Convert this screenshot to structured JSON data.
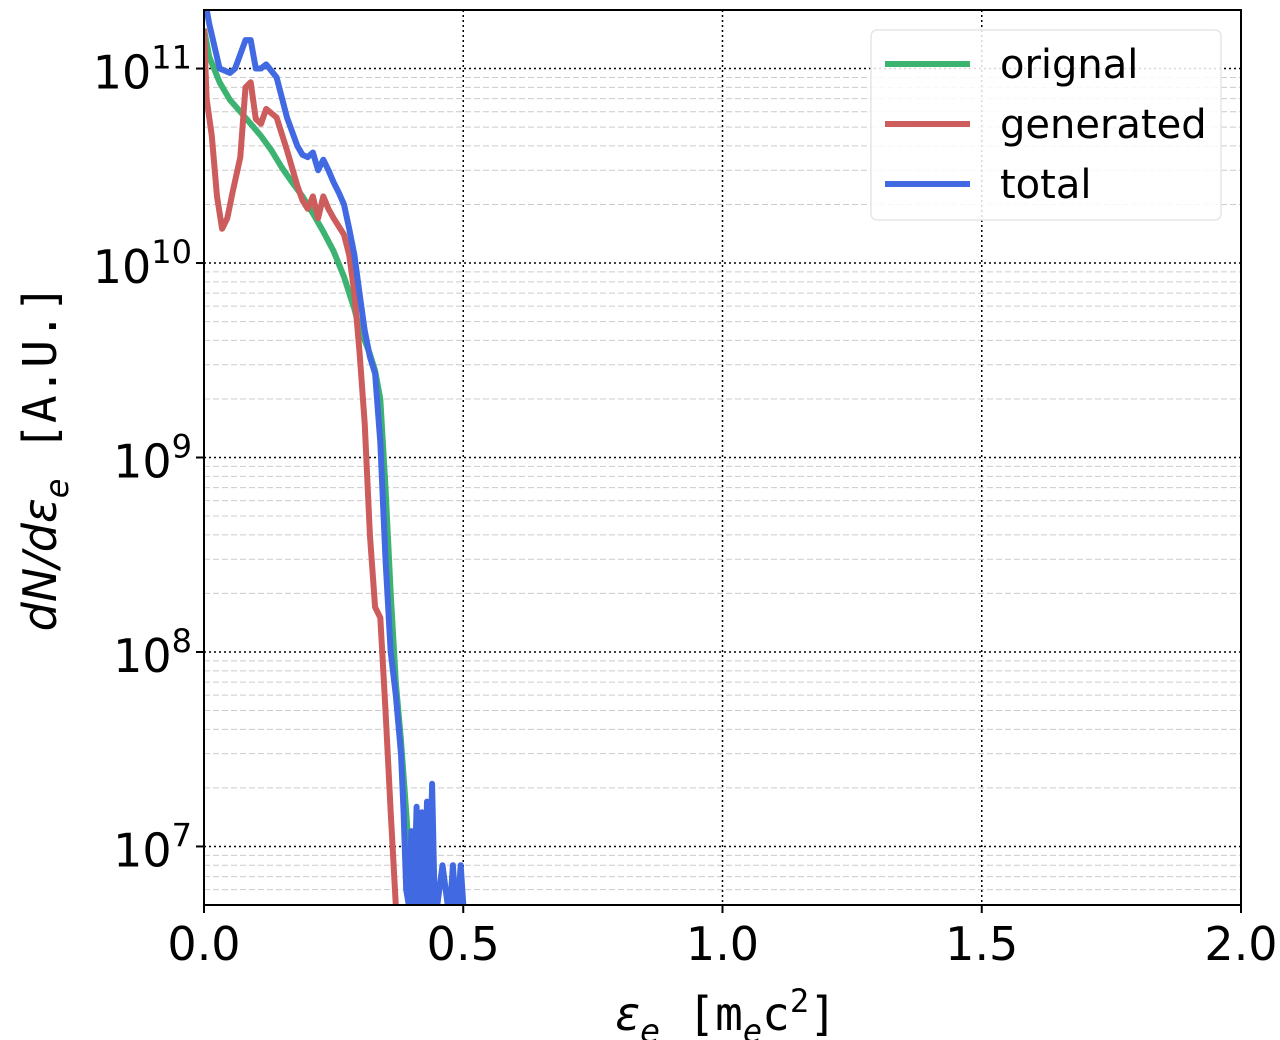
{
  "chart_data": {
    "type": "line",
    "xlabel": {
      "var": "ε",
      "sub": "e",
      "unit_open": " [m",
      "unit_sub": "e",
      "unit_mid": "c",
      "unit_sup": "2",
      "unit_close": "]"
    },
    "ylabel": {
      "pre": "dN/dε",
      "sub": "e",
      "unit": " [A.U.]"
    },
    "xlim": [
      0.0,
      2.0
    ],
    "ylim": [
      5000000,
      200000000000
    ],
    "yscale": "log",
    "grid": true,
    "legend_position": "top-right",
    "x_ticks": [
      "0.0",
      "0.5",
      "1.0",
      "1.5",
      "2.0"
    ],
    "x_tick_values": [
      0.0,
      0.5,
      1.0,
      1.5,
      2.0
    ],
    "y_ticks": [
      {
        "base": "10",
        "exp": "7",
        "value": 10000000
      },
      {
        "base": "10",
        "exp": "8",
        "value": 100000000
      },
      {
        "base": "10",
        "exp": "9",
        "value": 1000000000
      },
      {
        "base": "10",
        "exp": "10",
        "value": 10000000000
      },
      {
        "base": "10",
        "exp": "11",
        "value": 100000000000
      }
    ],
    "series": [
      {
        "name": "orignal",
        "color": "#3cb371",
        "points": [
          [
            0.0,
            160000000000.0
          ],
          [
            0.01,
            115000000000.0
          ],
          [
            0.03,
            85000000000.0
          ],
          [
            0.05,
            69000000000.0
          ],
          [
            0.07,
            60000000000.0
          ],
          [
            0.09,
            52000000000.0
          ],
          [
            0.11,
            45000000000.0
          ],
          [
            0.13,
            38000000000.0
          ],
          [
            0.15,
            31000000000.0
          ],
          [
            0.17,
            26000000000.0
          ],
          [
            0.19,
            22000000000.0
          ],
          [
            0.21,
            18000000000.0
          ],
          [
            0.23,
            14500000000.0
          ],
          [
            0.25,
            11500000000.0
          ],
          [
            0.27,
            8500000000.0
          ],
          [
            0.28,
            7000000000.0
          ],
          [
            0.29,
            5800000000.0
          ],
          [
            0.3,
            4600000000.0
          ],
          [
            0.31,
            4000000000.0
          ],
          [
            0.32,
            3400000000.0
          ],
          [
            0.33,
            2800000000.0
          ],
          [
            0.34,
            2000000000.0
          ],
          [
            0.35,
            700000000.0
          ],
          [
            0.36,
            200000000.0
          ],
          [
            0.37,
            70000000.0
          ],
          [
            0.38,
            35000000.0
          ],
          [
            0.39,
            15000000.0
          ],
          [
            0.4,
            6000000.0
          ]
        ]
      },
      {
        "name": "generated",
        "color": "#cd5c5c",
        "points": [
          [
            0.0,
            160000000000.0
          ],
          [
            0.005,
            70000000000.0
          ],
          [
            0.015,
            45000000000.0
          ],
          [
            0.025,
            22000000000.0
          ],
          [
            0.035,
            15000000000.0
          ],
          [
            0.045,
            17000000000.0
          ],
          [
            0.055,
            23000000000.0
          ],
          [
            0.07,
            35000000000.0
          ],
          [
            0.08,
            80000000000.0
          ],
          [
            0.09,
            85000000000.0
          ],
          [
            0.1,
            55000000000.0
          ],
          [
            0.11,
            52000000000.0
          ],
          [
            0.12,
            62000000000.0
          ],
          [
            0.14,
            56000000000.0
          ],
          [
            0.16,
            38000000000.0
          ],
          [
            0.18,
            25000000000.0
          ],
          [
            0.19,
            21000000000.0
          ],
          [
            0.2,
            19000000000.0
          ],
          [
            0.21,
            22000000000.0
          ],
          [
            0.22,
            17000000000.0
          ],
          [
            0.23,
            22000000000.0
          ],
          [
            0.24,
            19000000000.0
          ],
          [
            0.25,
            17000000000.0
          ],
          [
            0.27,
            14000000000.0
          ],
          [
            0.28,
            11000000000.0
          ],
          [
            0.29,
            7000000000.0
          ],
          [
            0.3,
            3500000000.0
          ],
          [
            0.31,
            1500000000.0
          ],
          [
            0.32,
            400000000.0
          ],
          [
            0.33,
            170000000.0
          ],
          [
            0.34,
            150000000.0
          ],
          [
            0.35,
            50000000.0
          ],
          [
            0.36,
            15000000.0
          ],
          [
            0.37,
            5000000.0
          ]
        ]
      },
      {
        "name": "total",
        "color": "#4169e1",
        "points": [
          [
            0.0,
            240000000000.0
          ],
          [
            0.01,
            170000000000.0
          ],
          [
            0.03,
            100000000000.0
          ],
          [
            0.05,
            95000000000.0
          ],
          [
            0.06,
            100000000000.0
          ],
          [
            0.08,
            140000000000.0
          ],
          [
            0.09,
            140000000000.0
          ],
          [
            0.1,
            100000000000.0
          ],
          [
            0.11,
            100000000000.0
          ],
          [
            0.12,
            105000000000.0
          ],
          [
            0.14,
            90000000000.0
          ],
          [
            0.16,
            56000000000.0
          ],
          [
            0.18,
            40000000000.0
          ],
          [
            0.19,
            36000000000.0
          ],
          [
            0.2,
            35000000000.0
          ],
          [
            0.21,
            37000000000.0
          ],
          [
            0.22,
            30000000000.0
          ],
          [
            0.23,
            34000000000.0
          ],
          [
            0.24,
            30000000000.0
          ],
          [
            0.25,
            26000000000.0
          ],
          [
            0.26,
            23000000000.0
          ],
          [
            0.27,
            20000000000.0
          ],
          [
            0.28,
            15000000000.0
          ],
          [
            0.29,
            11000000000.0
          ],
          [
            0.3,
            7000000000.0
          ],
          [
            0.31,
            4500000000.0
          ],
          [
            0.32,
            3300000000.0
          ],
          [
            0.33,
            2700000000.0
          ],
          [
            0.34,
            1200000000.0
          ],
          [
            0.35,
            300000000.0
          ],
          [
            0.36,
            100000000.0
          ],
          [
            0.37,
            60000000.0
          ],
          [
            0.38,
            30000000.0
          ],
          [
            0.385,
            15000000.0
          ],
          [
            0.39,
            6000000.0
          ],
          [
            0.395,
            5000000.0
          ],
          [
            0.4,
            12000000.0
          ],
          [
            0.405,
            5000000.0
          ],
          [
            0.41,
            16000000.0
          ],
          [
            0.415,
            5000000.0
          ],
          [
            0.42,
            15000000.0
          ],
          [
            0.425,
            5000000.0
          ],
          [
            0.43,
            17000000.0
          ],
          [
            0.435,
            5000000.0
          ],
          [
            0.44,
            21000000.0
          ],
          [
            0.445,
            5000000.0
          ],
          [
            0.45,
            5000000.0
          ],
          [
            0.46,
            8000000.0
          ],
          [
            0.47,
            5000000.0
          ],
          [
            0.475,
            5000000.0
          ],
          [
            0.48,
            8000000.0
          ],
          [
            0.485,
            5000000.0
          ],
          [
            0.49,
            5000000.0
          ],
          [
            0.495,
            8000000.0
          ],
          [
            0.5,
            5000000.0
          ]
        ]
      }
    ]
  }
}
